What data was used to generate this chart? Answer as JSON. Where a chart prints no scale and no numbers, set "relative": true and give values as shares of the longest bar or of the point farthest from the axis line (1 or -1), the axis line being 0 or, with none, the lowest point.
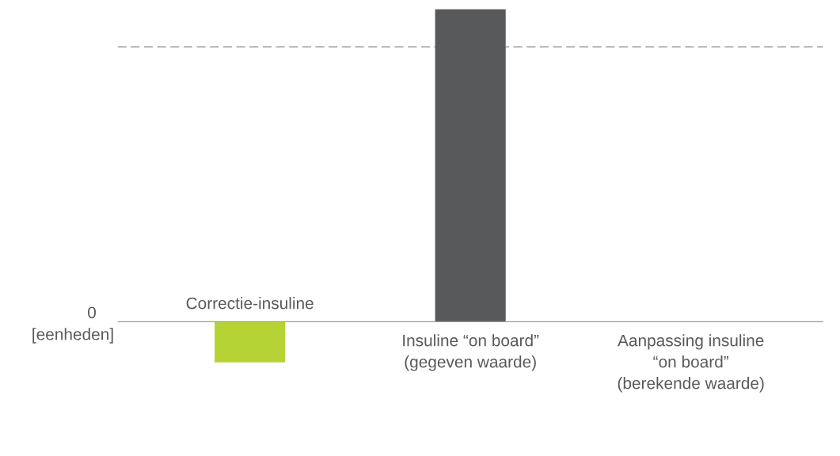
{
  "chart_data": {
    "type": "bar",
    "relative": true,
    "categories": [
      "Correctie-insuline",
      "Insuline “on board”\n(gegeven waarde)",
      "Aanpassing insuline\n“on board”\n(berekende waarde)"
    ],
    "values": [
      -0.13,
      1,
      0
    ],
    "colors": [
      "#b5d334",
      "#58595b",
      "#58595b"
    ],
    "ylabel": "[eenheden]",
    "annotations": [
      "0"
    ],
    "ref_lines": [
      {
        "axis": "y",
        "value": 0.88,
        "color": "#8a8a8a",
        "line_style": "dashed"
      }
    ],
    "legend": false
  }
}
